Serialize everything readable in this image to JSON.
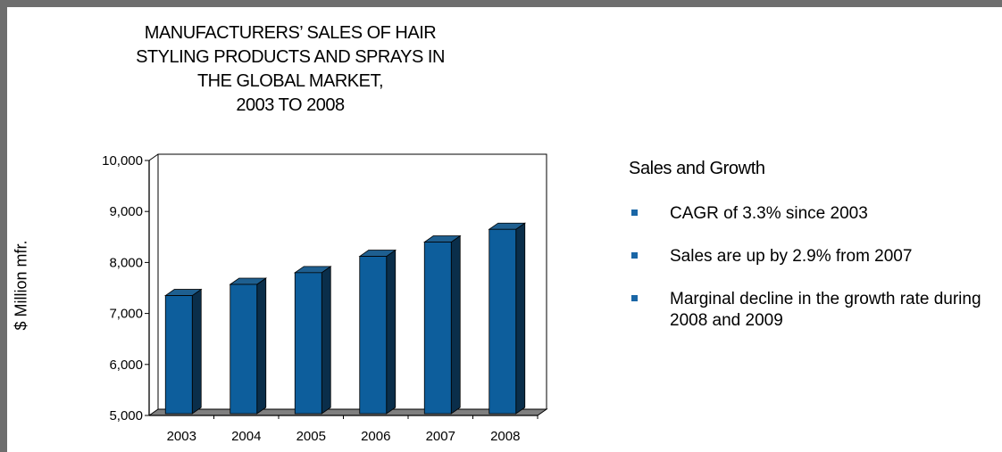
{
  "chart_data": {
    "type": "bar",
    "title": "MANUFACTURERS’ SALES OF HAIR\nSTYLING PRODUCTS AND SPRAYS IN\nTHE GLOBAL MARKET,\n2003 TO 2008",
    "xlabel": "",
    "ylabel": "$ Million mfr.",
    "categories": [
      "2003",
      "2004",
      "2005",
      "2006",
      "2007",
      "2008"
    ],
    "values": [
      7350,
      7570,
      7800,
      8120,
      8400,
      8650
    ],
    "ylim": [
      5000,
      10000
    ],
    "yticks": [
      5000,
      6000,
      7000,
      8000,
      9000,
      10000
    ],
    "ytick_labels": [
      "5,000",
      "6,000",
      "7,000",
      "8,000",
      "9,000",
      "10,000"
    ],
    "grid": false,
    "three_d": true,
    "colors": {
      "bar_front": "#0d5e9c",
      "bar_side": "#0a2e4a",
      "bar_top": "#1e5f90",
      "floor": "#7f7f7f",
      "frame": "#000000"
    }
  },
  "panel": {
    "heading": "Sales and Growth",
    "bullets": [
      "CAGR of 3.3% since 2003",
      "Sales are up by 2.9% from 2007",
      "Marginal decline in the growth rate during 2008 and 2009"
    ],
    "bullet_color": "#1a66a6"
  }
}
